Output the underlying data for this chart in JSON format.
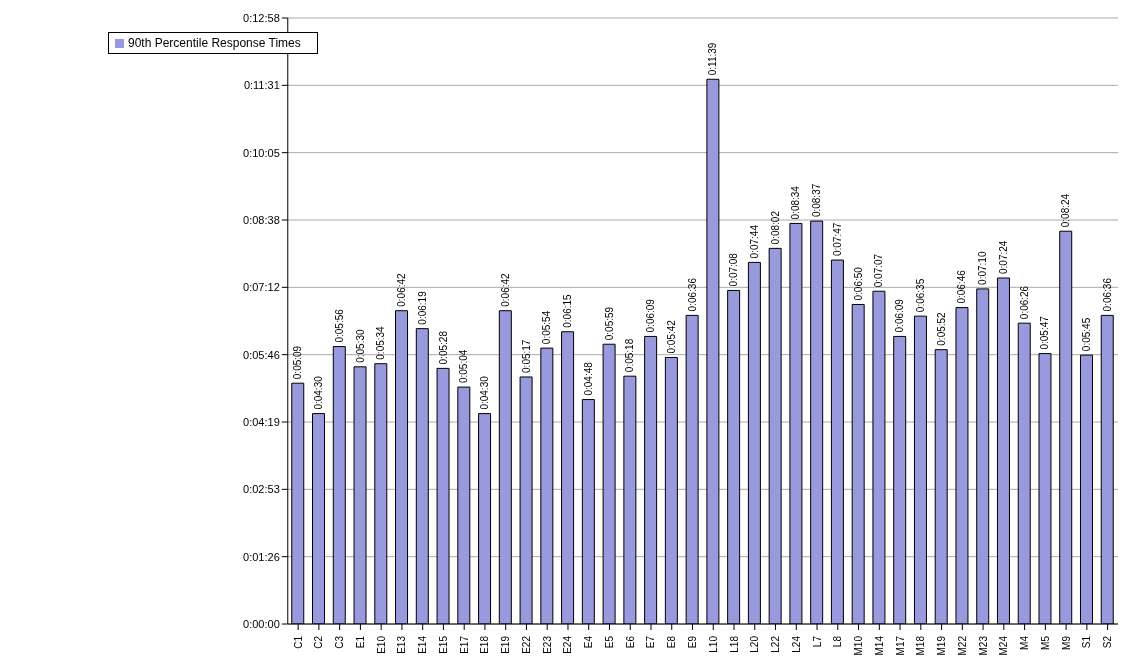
{
  "chart_data": {
    "type": "bar",
    "categories": [
      "C1",
      "C2",
      "C3",
      "E1",
      "E10",
      "E13",
      "E14",
      "E15",
      "E17",
      "E18",
      "E19",
      "E22",
      "E23",
      "E24",
      "E4",
      "E5",
      "E6",
      "E7",
      "E8",
      "E9",
      "L10",
      "L18",
      "L20",
      "L22",
      "L24",
      "L7",
      "L8",
      "M10",
      "M14",
      "M17",
      "M18",
      "M19",
      "M22",
      "M23",
      "M24",
      "M4",
      "M5",
      "M9",
      "S1",
      "S2"
    ],
    "series": [
      {
        "name": "90th Percentile Response Times",
        "color": "#9999dd",
        "values": [
          309,
          270,
          356,
          330,
          334,
          402,
          379,
          328,
          304,
          270,
          402,
          317,
          354,
          375,
          288,
          359,
          318,
          369,
          342,
          396,
          699,
          428,
          464,
          482,
          514,
          517,
          467,
          410,
          427,
          369,
          395,
          352,
          406,
          430,
          444,
          386,
          347,
          504,
          345,
          396
        ],
        "value_labels": [
          "0:05:09",
          "0:04:30",
          "0:05:56",
          "0:05:30",
          "0:05:34",
          "0:06:42",
          "0:06:19",
          "0:05:28",
          "0:05:04",
          "0:04:30",
          "0:06:42",
          "0:05:17",
          "0:05:54",
          "0:06:15",
          "0:04:48",
          "0:05:59",
          "0:05:18",
          "0:06:09",
          "0:05:42",
          "0:06:36",
          "0:11:39",
          "0:07:08",
          "0:07:44",
          "0:08:02",
          "0:08:34",
          "0:08:37",
          "0:07:47",
          "0:06:50",
          "0:07:07",
          "0:06:09",
          "0:06:35",
          "0:05:52",
          "0:06:46",
          "0:07:10",
          "0:07:24",
          "0:06:26",
          "0:05:47",
          "0:08:24",
          "0:05:45",
          "0:06:36"
        ]
      }
    ],
    "ylim": [
      0,
      777.6
    ],
    "yticks": [
      {
        "value": 0,
        "label": "0:00:00"
      },
      {
        "value": 86.4,
        "label": "0:01:26"
      },
      {
        "value": 172.8,
        "label": "0:02:53"
      },
      {
        "value": 259.2,
        "label": "0:04:19"
      },
      {
        "value": 345.6,
        "label": "0:05:46"
      },
      {
        "value": 432,
        "label": "0:07:12"
      },
      {
        "value": 518.4,
        "label": "0:08:38"
      },
      {
        "value": 604.8,
        "label": "0:10:05"
      },
      {
        "value": 691.2,
        "label": "0:11:31"
      },
      {
        "value": 777.6,
        "label": "0:12:58"
      }
    ],
    "grid": "y",
    "legend": "top left"
  }
}
